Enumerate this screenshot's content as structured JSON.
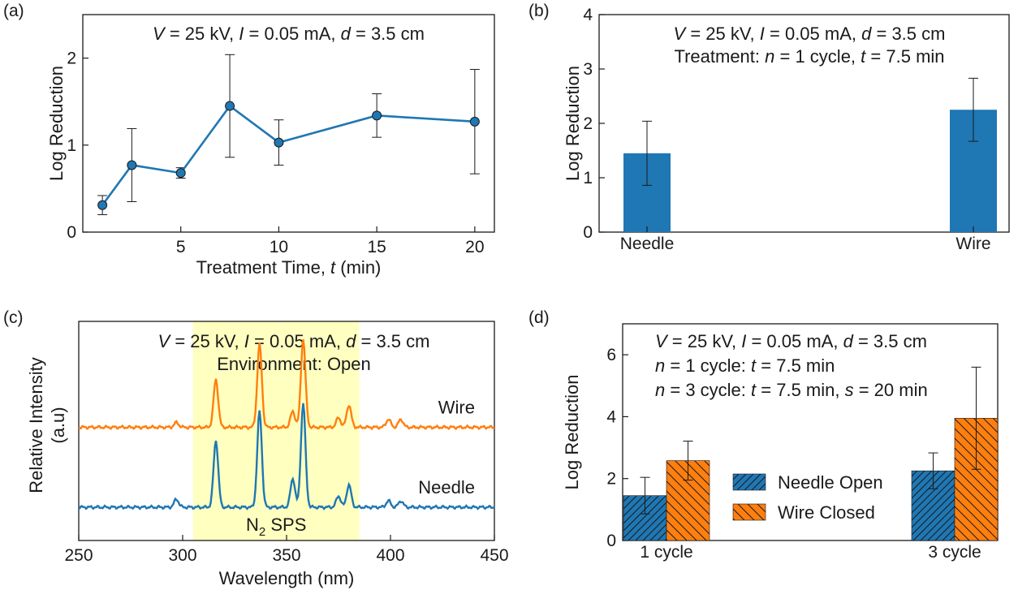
{
  "colors": {
    "blue": "#1f77b4",
    "orange": "#ff7f0e",
    "highlight": "#ffffc0",
    "axis": "#1a1a1a"
  },
  "chart_data": [
    {
      "id": "a",
      "type": "line",
      "panel_label": "(a)",
      "title_lines": [
        [
          {
            "t": "V",
            "i": true
          },
          {
            "t": " = 25 kV, "
          },
          {
            "t": "I",
            "i": true
          },
          {
            "t": " = 0.05 mA, "
          },
          {
            "t": "d",
            "i": true
          },
          {
            "t": " = 3.5 cm"
          }
        ]
      ],
      "xlabel": [
        {
          "t": "Treatment Time, "
        },
        {
          "t": "t",
          "i": true
        },
        {
          "t": " (min)"
        }
      ],
      "ylabel": "Log Reduction",
      "xlim": [
        0,
        21
      ],
      "ylim": [
        0,
        2.5
      ],
      "xticks": [
        5,
        10,
        15,
        20
      ],
      "yticks": [
        0,
        1,
        2
      ],
      "series": [
        {
          "color": "#1f77b4",
          "x": [
            1,
            2.5,
            5,
            7.5,
            10,
            15,
            20
          ],
          "y": [
            0.31,
            0.77,
            0.68,
            1.45,
            1.03,
            1.34,
            1.27
          ],
          "err": [
            0.11,
            0.42,
            0.06,
            0.59,
            0.26,
            0.25,
            0.6
          ]
        }
      ]
    },
    {
      "id": "b",
      "type": "bar",
      "panel_label": "(b)",
      "title_lines": [
        [
          {
            "t": "V",
            "i": true
          },
          {
            "t": " = 25 kV, "
          },
          {
            "t": "I",
            "i": true
          },
          {
            "t": " = 0.05 mA, "
          },
          {
            "t": "d",
            "i": true
          },
          {
            "t": " = 3.5 cm"
          }
        ],
        [
          {
            "t": "Treatment: "
          },
          {
            "t": "n",
            "i": true
          },
          {
            "t": " = 1 cycle, "
          },
          {
            "t": "t",
            "i": true
          },
          {
            "t": " = 7.5 min"
          }
        ]
      ],
      "ylabel": "Log Reduction",
      "ylim": [
        0,
        4
      ],
      "yticks": [
        0,
        1,
        2,
        3,
        4
      ],
      "categories": [
        "Needle",
        "Wire"
      ],
      "values": [
        1.45,
        2.25
      ],
      "err": [
        0.59,
        0.58
      ],
      "color": "#1f77b4"
    },
    {
      "id": "c",
      "type": "line",
      "panel_label": "(c)",
      "title_lines": [
        [
          {
            "t": "V",
            "i": true
          },
          {
            "t": " = 25 kV, "
          },
          {
            "t": "I",
            "i": true
          },
          {
            "t": " = 0.05 mA, "
          },
          {
            "t": "d",
            "i": true
          },
          {
            "t": " = 3.5 cm"
          }
        ],
        [
          {
            "t": "Environment: Open"
          }
        ]
      ],
      "xlabel": [
        {
          "t": "Wavelength (nm)"
        }
      ],
      "ylabel_lines": [
        "Relative Intensity",
        "(a.u)"
      ],
      "xlim": [
        250,
        450
      ],
      "xticks": [
        250,
        300,
        350,
        400,
        450
      ],
      "highlight_range": [
        305,
        385
      ],
      "highlight_label": {
        "base": "N",
        "sub": "2",
        "rest": " SPS"
      },
      "series": [
        {
          "name": "Wire",
          "color": "#ff7f0e",
          "baseline": 0.5,
          "peaks": [
            [
              297,
              0.03
            ],
            [
              316,
              0.3
            ],
            [
              337,
              0.52
            ],
            [
              353,
              0.1
            ],
            [
              358,
              0.55
            ],
            [
              375,
              0.06
            ],
            [
              380,
              0.14
            ],
            [
              399,
              0.05
            ],
            [
              405,
              0.05
            ]
          ]
        },
        {
          "name": "Needle",
          "color": "#1f77b4",
          "baseline": 0.0,
          "peaks": [
            [
              297,
              0.05
            ],
            [
              316,
              0.42
            ],
            [
              337,
              0.6
            ],
            [
              353,
              0.18
            ],
            [
              358,
              0.65
            ],
            [
              375,
              0.07
            ],
            [
              380,
              0.14
            ],
            [
              399,
              0.04
            ],
            [
              405,
              0.04
            ]
          ]
        }
      ]
    },
    {
      "id": "d",
      "type": "bar",
      "panel_label": "(d)",
      "title_lines": [
        [
          {
            "t": "V",
            "i": true
          },
          {
            "t": " = 25 kV, "
          },
          {
            "t": "I",
            "i": true
          },
          {
            "t": " = 0.05 mA, "
          },
          {
            "t": "d",
            "i": true
          },
          {
            "t": " = 3.5 cm"
          }
        ],
        [
          {
            "t": "n",
            "i": true
          },
          {
            "t": " = 1 cycle: "
          },
          {
            "t": "t",
            "i": true
          },
          {
            "t": " = 7.5 min"
          }
        ],
        [
          {
            "t": "n",
            "i": true
          },
          {
            "t": " = 3 cycle: "
          },
          {
            "t": "t",
            "i": true
          },
          {
            "t": " = 7.5 min, "
          },
          {
            "t": "s",
            "i": true
          },
          {
            "t": " = 20 min"
          }
        ]
      ],
      "ylabel": "Log Reduction",
      "ylim": [
        0,
        7
      ],
      "yticks": [
        0,
        2,
        4,
        6
      ],
      "categories": [
        "1 cycle",
        "3 cycle"
      ],
      "series": [
        {
          "name": "Needle Open",
          "color": "#1f77b4",
          "hatch": "forward",
          "values": [
            1.45,
            2.25
          ],
          "err": [
            0.59,
            0.58
          ]
        },
        {
          "name": "Wire Closed",
          "color": "#ff7f0e",
          "hatch": "back",
          "values": [
            2.58,
            3.95
          ],
          "err": [
            0.63,
            1.65
          ]
        }
      ],
      "legend_position": "center"
    }
  ]
}
